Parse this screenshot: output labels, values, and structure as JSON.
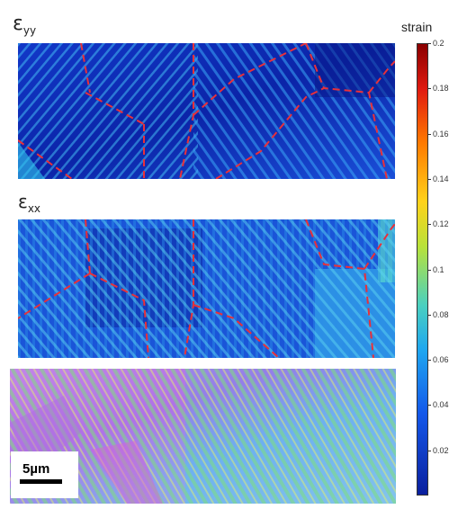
{
  "labels": {
    "eps_yy_symbol": "ε",
    "eps_yy_sub": "yy",
    "eps_xx_symbol": "ε",
    "eps_xx_sub": "xx"
  },
  "colorbar": {
    "title": "strain",
    "ticks": [
      "0.2",
      "0.18",
      "0.16",
      "0.14",
      "0.12",
      "0.1",
      "0.08",
      "0.06",
      "0.04",
      "0.02"
    ],
    "range": [
      0,
      0.2
    ],
    "colormap": "jet"
  },
  "scalebar": {
    "label": "5µm"
  },
  "colors": {
    "boundary": "#e8303a",
    "strain_low": "#0a1f9e",
    "strain_mid": "#1e6cf0",
    "strain_high": "#48d0f4"
  }
}
